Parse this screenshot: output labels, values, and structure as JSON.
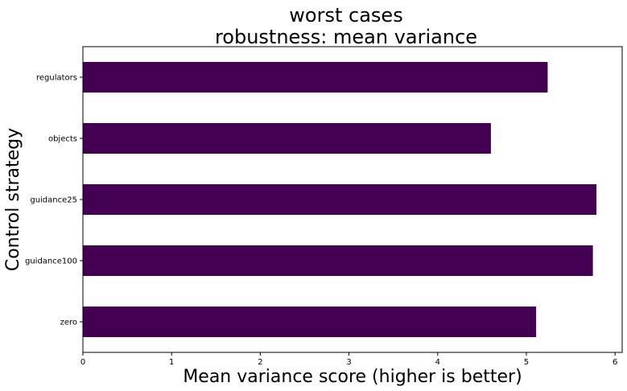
{
  "chart_data": {
    "type": "bar",
    "orientation": "horizontal",
    "title": [
      "worst cases",
      "robustness: mean variance"
    ],
    "xlabel": "Mean variance score (higher is better)",
    "ylabel": "Control strategy",
    "categories": [
      "zero",
      "guidance100",
      "guidance25",
      "objects",
      "regulators"
    ],
    "values": [
      5.11,
      5.75,
      5.79,
      4.6,
      5.24
    ],
    "xlim": [
      0,
      6.08
    ],
    "xticks": [
      "0",
      "1",
      "2",
      "3",
      "4",
      "5",
      "6"
    ],
    "bar_color": "#440154",
    "grid": false,
    "legend": false
  }
}
